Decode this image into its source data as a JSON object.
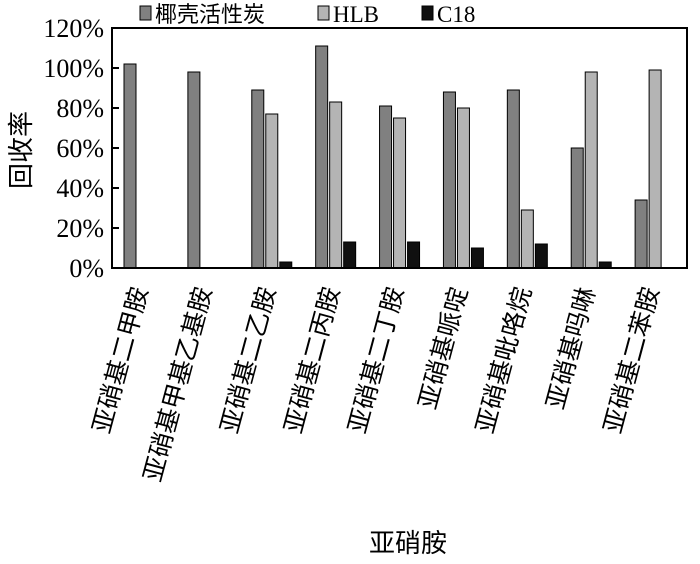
{
  "chart_data": {
    "type": "bar",
    "title": "",
    "xlabel": "亚硝胺",
    "ylabel": "回收率",
    "ylim": [
      0,
      120
    ],
    "y_ticks": [
      0,
      20,
      40,
      60,
      80,
      100,
      120
    ],
    "y_tick_labels": [
      "0%",
      "20%",
      "40%",
      "60%",
      "80%",
      "100%",
      "120%"
    ],
    "categories": [
      "亚硝基二甲胺",
      "亚硝基甲基乙基胺",
      "亚硝基二乙胺",
      "亚硝基二丙胺",
      "亚硝基二丁胺",
      "亚硝基哌啶",
      "亚硝基吡咯烷",
      "亚硝基吗啉",
      "亚硝基二苯胺"
    ],
    "series": [
      {
        "name": "椰壳活性炭",
        "color": "#808080",
        "values": [
          102,
          98,
          89,
          111,
          81,
          88,
          89,
          60,
          34
        ]
      },
      {
        "name": "HLB",
        "color": "#b4b4b4",
        "values": [
          0,
          0,
          77,
          83,
          75,
          80,
          29,
          98,
          99
        ]
      },
      {
        "name": "C18",
        "color": "#101010",
        "values": [
          0,
          0,
          3,
          13,
          13,
          10,
          12,
          3,
          0
        ]
      }
    ],
    "legend_position": "top",
    "grid": false
  }
}
